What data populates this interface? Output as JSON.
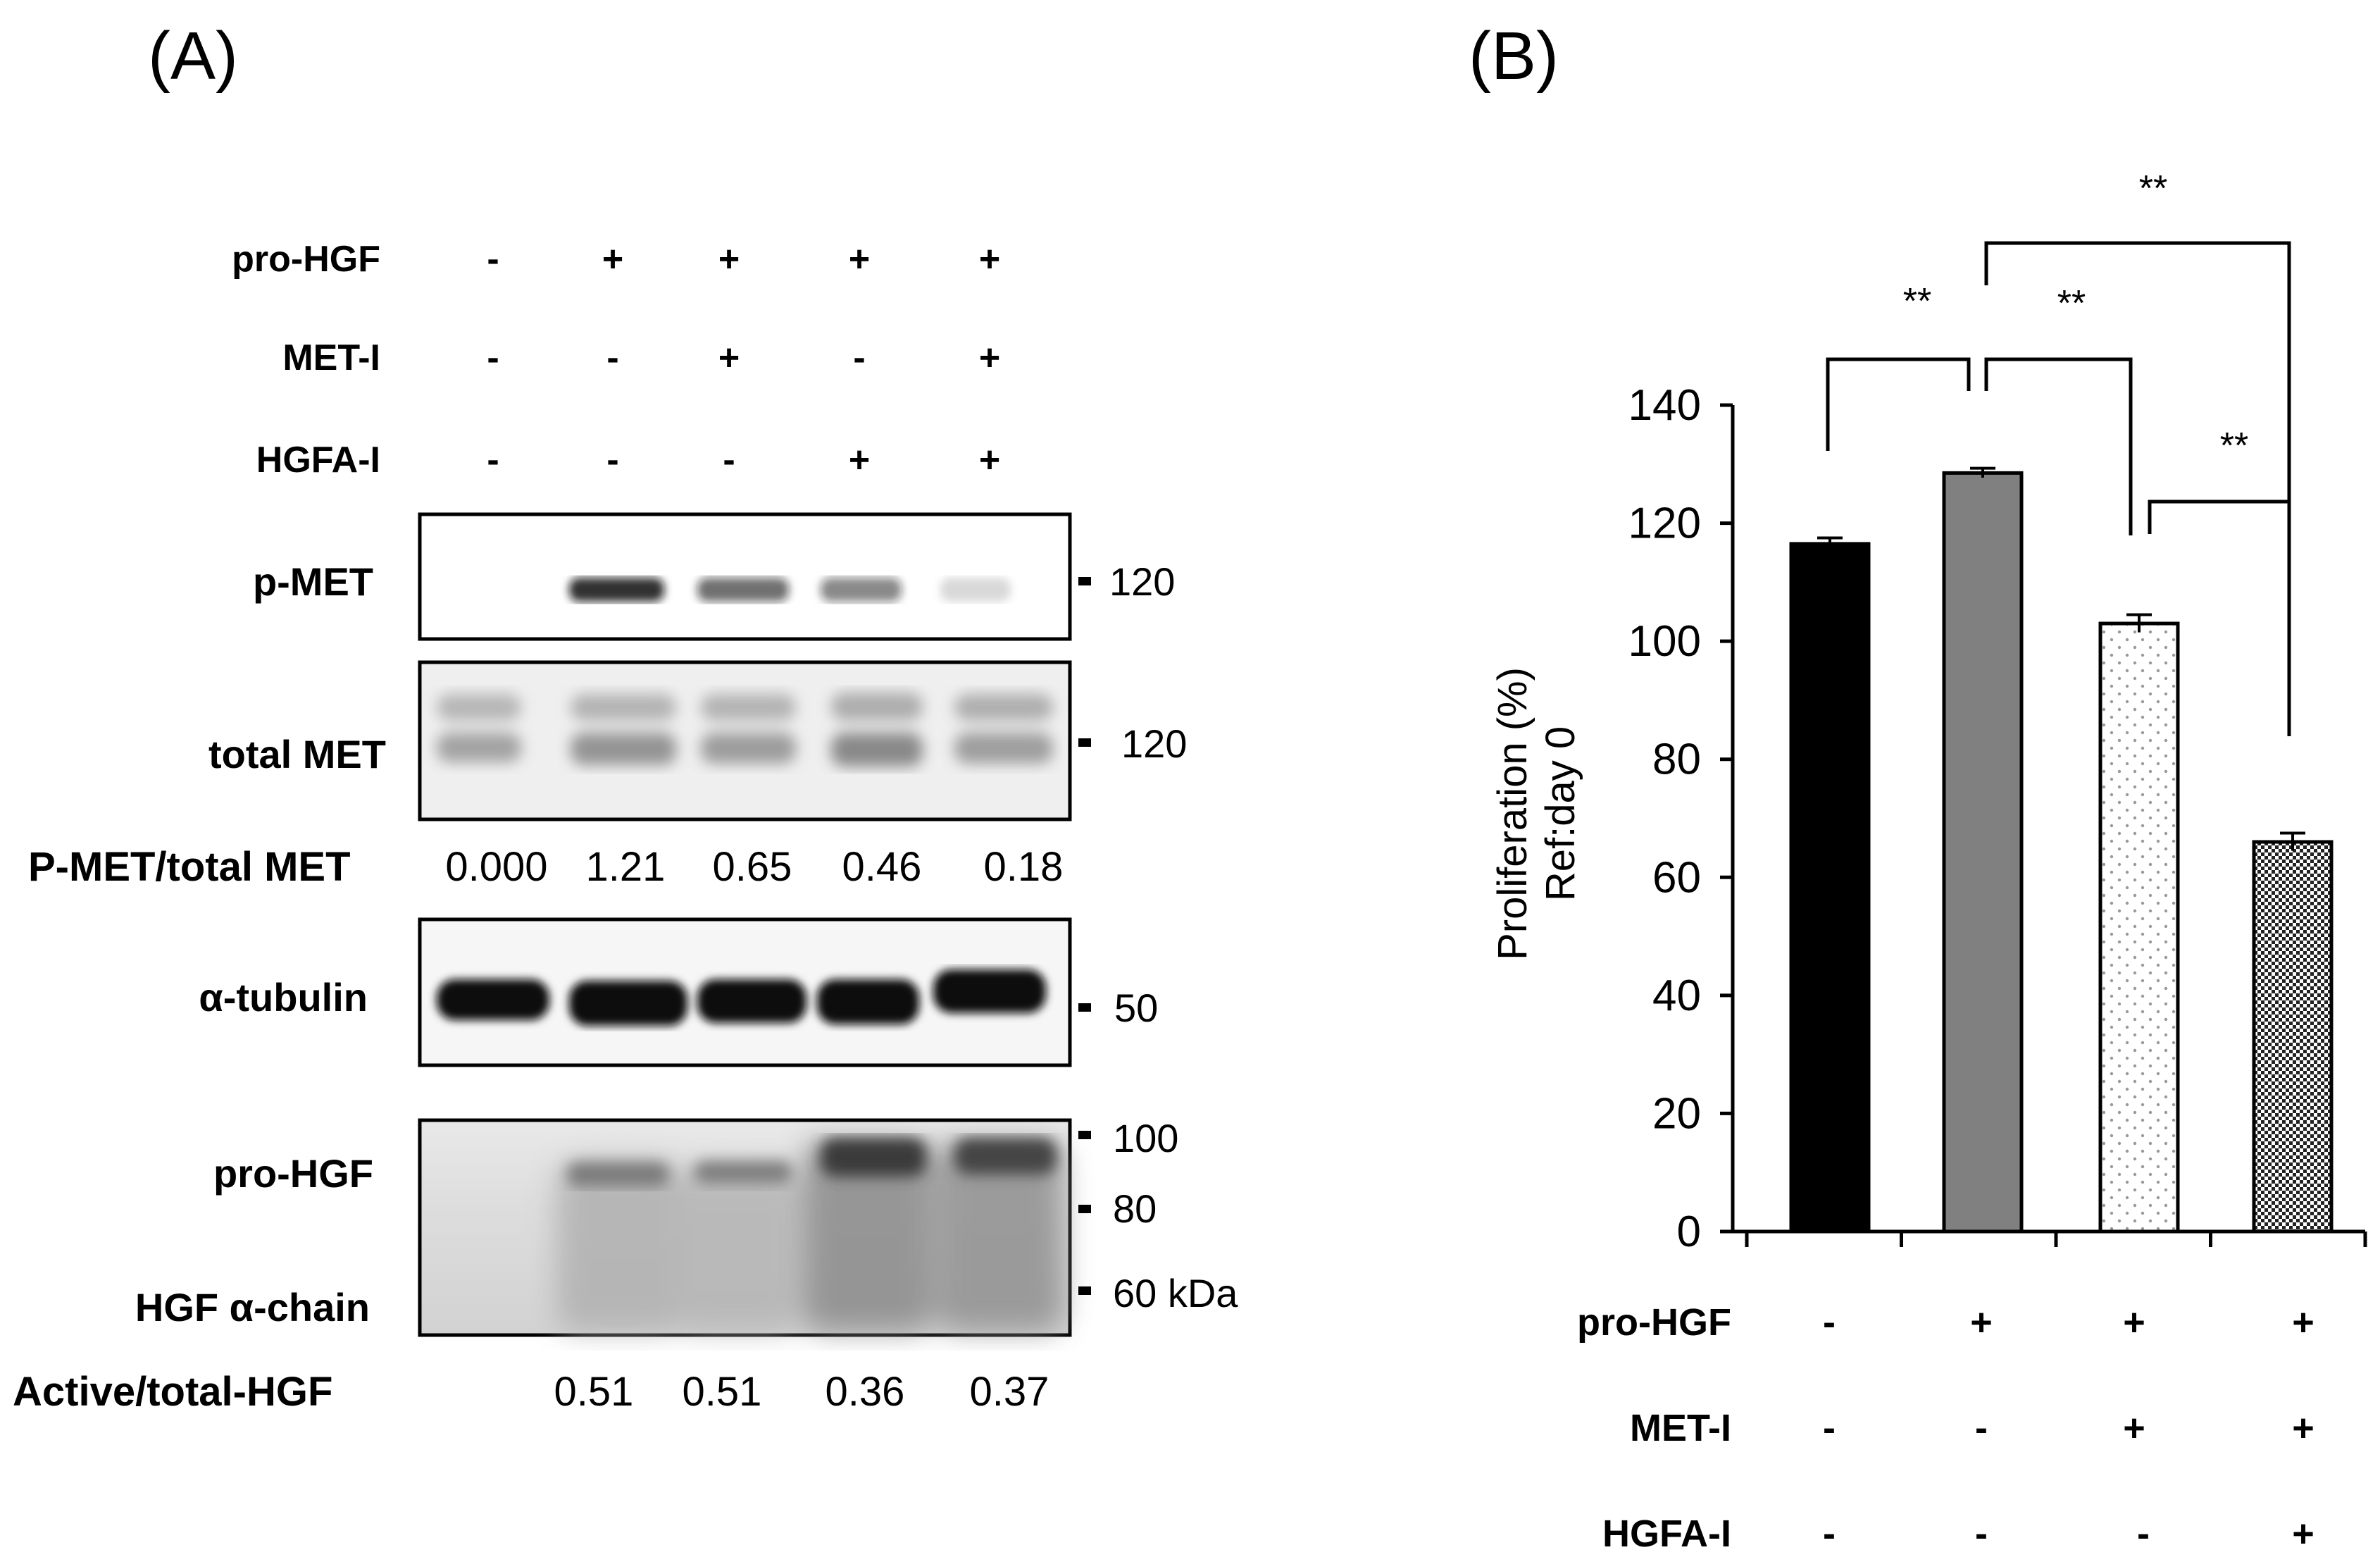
{
  "panel_a": {
    "label": "(A)",
    "conditions": {
      "rows": [
        {
          "name": "pro-HGF",
          "signs": [
            "-",
            "+",
            "+",
            "+",
            "+"
          ]
        },
        {
          "name": "MET-I",
          "signs": [
            "-",
            "-",
            "+",
            "-",
            "+"
          ]
        },
        {
          "name": "HGFA-I",
          "signs": [
            "-",
            "-",
            "-",
            "+",
            "+"
          ]
        }
      ]
    },
    "blots": {
      "pmet": {
        "label": "p-MET",
        "marker": "120",
        "band_intensity": [
          0.0,
          0.85,
          0.6,
          0.5,
          0.15
        ]
      },
      "total_met": {
        "label": "total MET",
        "marker": "120"
      },
      "tubulin": {
        "label": "α-tubulin",
        "marker": "50"
      },
      "hgf": {
        "labels": [
          "pro-HGF",
          "HGF α-chain"
        ],
        "markers": [
          "100",
          "80",
          "60 kDa"
        ]
      }
    },
    "ratio_met": {
      "label": "P-MET/total MET",
      "values": [
        "0.000",
        "1.21",
        "0.65",
        "0.46",
        "0.18"
      ]
    },
    "ratio_hgf": {
      "label": "Active/total-HGF",
      "values": [
        "",
        "0.51",
        "0.51",
        "0.36",
        "0.37"
      ]
    }
  },
  "panel_b": {
    "label": "(B)",
    "conditions": {
      "rows": [
        {
          "name": "pro-HGF",
          "signs": [
            "-",
            "+",
            "+",
            "+"
          ]
        },
        {
          "name": "MET-I",
          "signs": [
            "-",
            "-",
            "+",
            "+"
          ]
        },
        {
          "name": "HGFA-I",
          "signs": [
            "-",
            "-",
            "-",
            "+"
          ]
        }
      ]
    },
    "significance": [
      "**",
      "**",
      "**",
      "**"
    ],
    "colors": {
      "bar1": "#000000",
      "bar2": "#808080",
      "bar3": "#ffffff",
      "bar4": "#4d4d4d"
    }
  },
  "chart_data": {
    "type": "bar",
    "categories": [
      "1",
      "2",
      "3",
      "4"
    ],
    "values": [
      116.5,
      128.5,
      103.0,
      66.0
    ],
    "errors": [
      1.0,
      0.8,
      1.5,
      1.5
    ],
    "ylabel": [
      "Proliferation (%)",
      "Ref:day 0"
    ],
    "ylim": [
      0,
      140
    ],
    "yticks": [
      "0",
      "20",
      "40",
      "60",
      "80",
      "100",
      "120",
      "140"
    ],
    "grid": false,
    "fills": [
      "solid-black",
      "solid-gray",
      "dotted",
      "crosshatch"
    ]
  }
}
